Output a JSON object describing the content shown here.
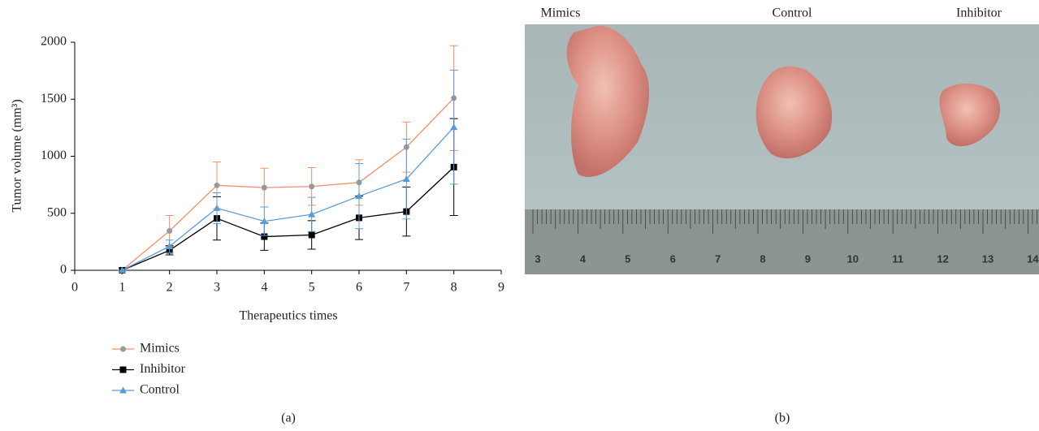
{
  "chart_data": {
    "type": "line",
    "xlabel": "Therapeutics times",
    "ylabel": "Tumor volume (mm³)",
    "x": [
      1,
      2,
      3,
      4,
      5,
      6,
      7,
      8
    ],
    "xlim": [
      0,
      9
    ],
    "xticks": [
      0,
      1,
      2,
      3,
      4,
      5,
      6,
      7,
      8,
      9
    ],
    "ylim": [
      0,
      2000
    ],
    "yticks": [
      0,
      500,
      1000,
      1500,
      2000
    ],
    "legend": "bottom-left",
    "series": [
      {
        "name": "Mimics",
        "color": "#f0906a",
        "marker": "circle",
        "marker_color": "#999999",
        "values": [
          0,
          345,
          745,
          725,
          735,
          770,
          1080,
          1510
        ],
        "errors": [
          0,
          135,
          205,
          170,
          165,
          200,
          220,
          460
        ]
      },
      {
        "name": "Inhibitor",
        "color": "#000000",
        "marker": "square",
        "marker_color": "#000000",
        "values": [
          0,
          175,
          455,
          295,
          310,
          460,
          515,
          905
        ],
        "errors": [
          0,
          40,
          190,
          120,
          125,
          190,
          215,
          425
        ]
      },
      {
        "name": "Control",
        "color": "#5b9bd5",
        "marker": "triangle",
        "marker_color": "#5b9bd5",
        "values": [
          0,
          210,
          545,
          430,
          490,
          650,
          800,
          1255
        ],
        "errors": [
          0,
          55,
          135,
          125,
          150,
          285,
          350,
          500
        ]
      }
    ]
  },
  "figure": {
    "panel_labels": [
      "(a)",
      "(b)"
    ],
    "photo": {
      "labels": [
        "Mimics",
        "Control",
        "Inhibitor"
      ],
      "ruler_numbers": [
        "3",
        "4",
        "5",
        "6",
        "7",
        "8",
        "9",
        "10",
        "11",
        "12",
        "13",
        "14"
      ]
    }
  }
}
